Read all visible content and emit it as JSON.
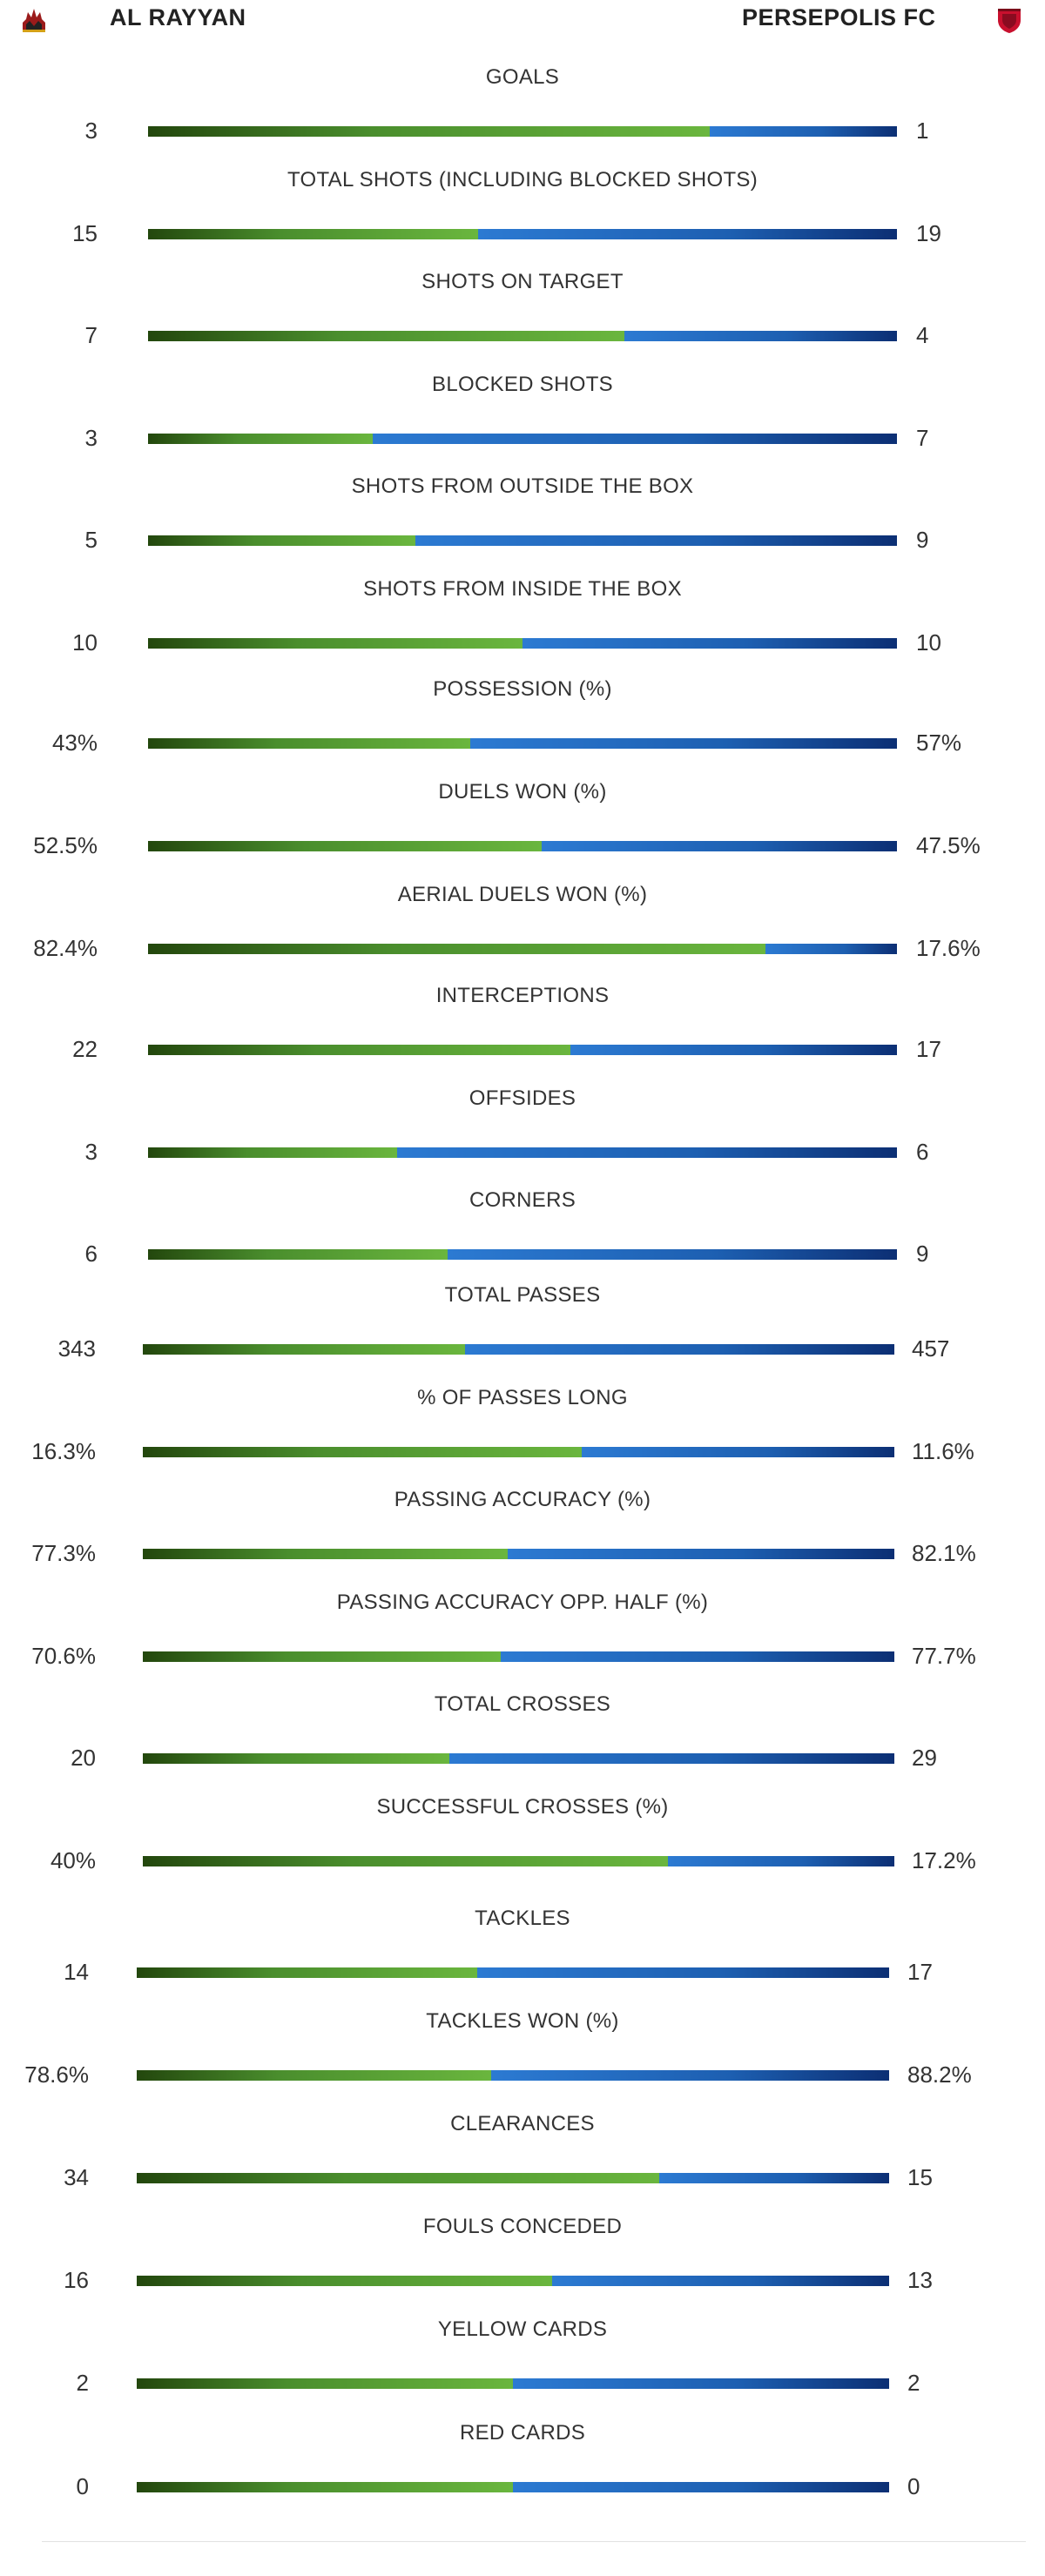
{
  "header": {
    "home_team": "AL RAYYAN",
    "away_team": "PERSEPOLIS FC",
    "home_icon": "al-rayyan-crest-icon",
    "away_icon": "persepolis-crest-icon"
  },
  "colors": {
    "home_bar": "#4a8e2d",
    "away_bar": "#1c63b5",
    "text": "#333333"
  },
  "stats": [
    {
      "label": "GOALS",
      "home": "3",
      "away": "1",
      "home_share": 0.75
    },
    {
      "label": "TOTAL SHOTS (INCLUDING BLOCKED SHOTS)",
      "home": "15",
      "away": "19",
      "home_share": 0.441
    },
    {
      "label": "SHOTS ON TARGET",
      "home": "7",
      "away": "4",
      "home_share": 0.636
    },
    {
      "label": "BLOCKED SHOTS",
      "home": "3",
      "away": "7",
      "home_share": 0.3
    },
    {
      "label": "SHOTS FROM OUTSIDE THE BOX",
      "home": "5",
      "away": "9",
      "home_share": 0.357
    },
    {
      "label": "SHOTS FROM INSIDE THE BOX",
      "home": "10",
      "away": "10",
      "home_share": 0.5
    },
    {
      "label": "POSSESSION (%)",
      "home": "43%",
      "away": "57%",
      "home_share": 0.43
    },
    {
      "label": "DUELS WON (%)",
      "home": "52.5%",
      "away": "47.5%",
      "home_share": 0.525
    },
    {
      "label": "AERIAL DUELS WON (%)",
      "home": "82.4%",
      "away": "17.6%",
      "home_share": 0.824
    },
    {
      "label": "INTERCEPTIONS",
      "home": "22",
      "away": "17",
      "home_share": 0.564
    },
    {
      "label": "OFFSIDES",
      "home": "3",
      "away": "6",
      "home_share": 0.333
    },
    {
      "label": "CORNERS",
      "home": "6",
      "away": "9",
      "home_share": 0.4
    },
    {
      "label": "TOTAL PASSES",
      "home": "343",
      "away": "457",
      "home_share": 0.429
    },
    {
      "label": "% OF PASSES LONG",
      "home": "16.3%",
      "away": "11.6%",
      "home_share": 0.584
    },
    {
      "label": "PASSING ACCURACY (%)",
      "home": "77.3%",
      "away": "82.1%",
      "home_share": 0.485
    },
    {
      "label": "PASSING ACCURACY OPP. HALF (%)",
      "home": "70.6%",
      "away": "77.7%",
      "home_share": 0.476
    },
    {
      "label": "TOTAL CROSSES",
      "home": "20",
      "away": "29",
      "home_share": 0.408
    },
    {
      "label": "SUCCESSFUL CROSSES (%)",
      "home": "40%",
      "away": "17.2%",
      "home_share": 0.699
    },
    {
      "label": "TACKLES",
      "home": "14",
      "away": "17",
      "home_share": 0.452
    },
    {
      "label": "TACKLES WON (%)",
      "home": "78.6%",
      "away": "88.2%",
      "home_share": 0.471
    },
    {
      "label": "CLEARANCES",
      "home": "34",
      "away": "15",
      "home_share": 0.694
    },
    {
      "label": "FOULS CONCEDED",
      "home": "16",
      "away": "13",
      "home_share": 0.552
    },
    {
      "label": "YELLOW CARDS",
      "home": "2",
      "away": "2",
      "home_share": 0.5
    },
    {
      "label": "RED CARDS",
      "home": "0",
      "away": "0",
      "home_share": 0.5
    }
  ]
}
